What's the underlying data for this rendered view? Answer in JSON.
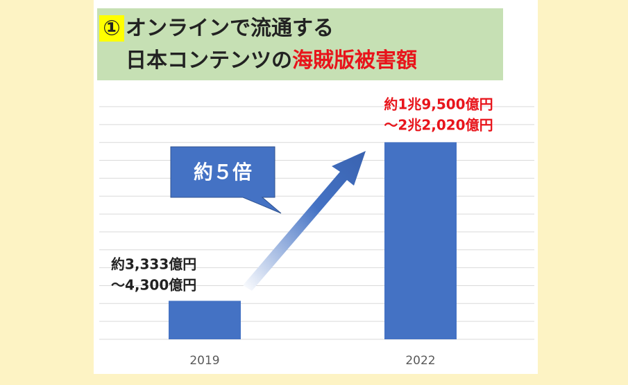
{
  "chart_data": {
    "type": "bar",
    "title_marker": "①",
    "title_line1": "オンラインで流通する",
    "title_line2": "日本コンテンツの",
    "title_highlight": "海賊版被害額",
    "annotation": "約５倍",
    "categories": [
      "2019",
      "2022"
    ],
    "values": [
      4300,
      22020
    ],
    "value_labels": [
      [
        "約3,333億円",
        "～4,300億円"
      ],
      [
        "約1兆9,500億円",
        "～2兆2,020億円"
      ]
    ],
    "value_label_colors": [
      "#222222",
      "#e8141b"
    ],
    "color": "#4472c4",
    "ylim": [
      0,
      26000
    ],
    "yticks": [
      0,
      2000,
      4000,
      6000,
      8000,
      10000,
      12000,
      14000,
      16000,
      18000,
      20000,
      22000,
      24000,
      26000
    ],
    "grid": true
  }
}
